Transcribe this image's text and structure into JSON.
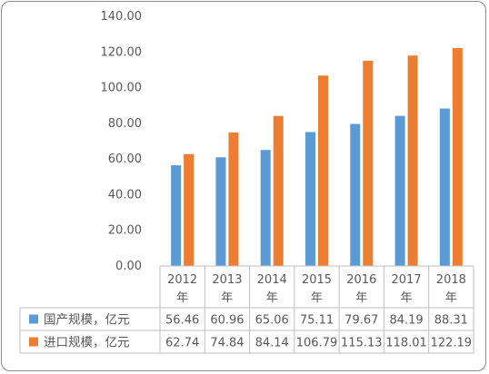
{
  "chart_data": {
    "type": "bar",
    "categories": [
      "2012\n年",
      "2013\n年",
      "2014\n年",
      "2015\n年",
      "2016\n年",
      "2017\n年",
      "2018\n年"
    ],
    "series": [
      {
        "name": "国产规模，亿元",
        "color": "#5b9bd5",
        "values": [
          56.46,
          60.96,
          65.06,
          75.11,
          79.67,
          84.19,
          88.31
        ],
        "labels": [
          "56.46",
          "60.96",
          "65.06",
          "75.11",
          "79.67",
          "84.19",
          "88.31"
        ]
      },
      {
        "name": "进口规模，亿元",
        "color": "#ed7d31",
        "values": [
          62.74,
          74.84,
          84.14,
          106.79,
          115.13,
          118.01,
          122.19
        ],
        "labels": [
          "62.74",
          "74.84",
          "84.14",
          "106.79",
          "115.13",
          "118.01",
          "122.19"
        ]
      }
    ],
    "yticks": [
      "0.00",
      "20.00",
      "40.00",
      "60.00",
      "80.00",
      "100.00",
      "120.00",
      "140.00"
    ],
    "ylim": [
      0,
      140
    ],
    "legend": "data-table",
    "grid": false
  }
}
